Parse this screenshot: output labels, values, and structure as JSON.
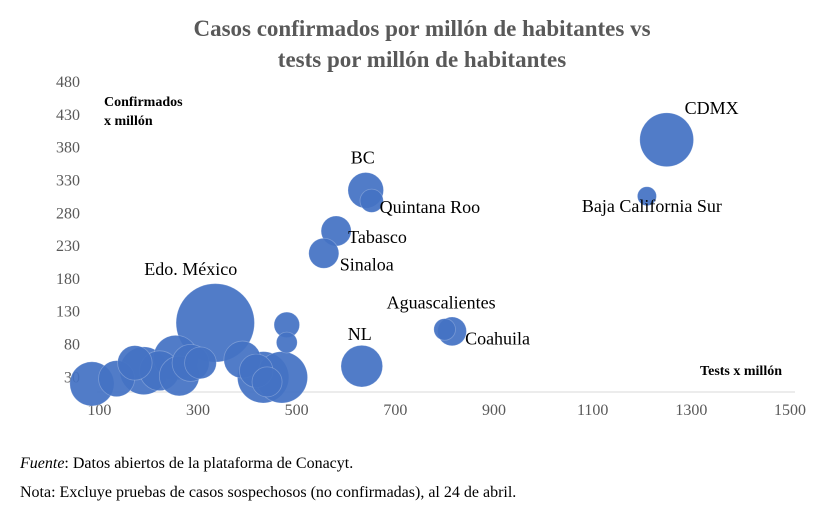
{
  "chart_data": {
    "type": "scatter",
    "subtype": "bubble",
    "title": [
      "Casos confirmados por millón de habitantes vs",
      "tests por millón de habitantes"
    ],
    "xlabel": "Tests x millón",
    "ylabel": [
      "Confirmados",
      "x millón"
    ],
    "xlim": [
      0,
      1500
    ],
    "ylim": [
      0,
      480
    ],
    "xticks": [
      "100",
      "300",
      "500",
      "700",
      "900",
      "1100",
      "1300",
      "1500"
    ],
    "yticks": [
      "30",
      "80",
      "130",
      "180",
      "230",
      "280",
      "330",
      "380",
      "430",
      "480"
    ],
    "grid": false,
    "legend": "none",
    "color": "#4472c4",
    "points": [
      {
        "label": "CDMX",
        "x": 1250,
        "y": 392,
        "size": 8
      },
      {
        "label": "Baja California Sur",
        "x": 1210,
        "y": 306,
        "size": 1
      },
      {
        "label": "BC",
        "x": 640,
        "y": 315,
        "size": 3.5
      },
      {
        "label": "Quintana Roo",
        "x": 652,
        "y": 299,
        "size": 1.5
      },
      {
        "label": "Tabasco",
        "x": 580,
        "y": 253,
        "size": 2.5
      },
      {
        "label": "Sinaloa",
        "x": 555,
        "y": 219,
        "size": 2.5
      },
      {
        "label": "Edo. México",
        "x": 335,
        "y": 113,
        "size": 17
      },
      {
        "label": "Aguascalientes",
        "x": 800,
        "y": 103,
        "size": 1.3
      },
      {
        "label": "Coahuila",
        "x": 815,
        "y": 100,
        "size": 2.3
      },
      {
        "label": "NL",
        "x": 632,
        "y": 47,
        "size": 4.8
      },
      {
        "label": "",
        "x": 480,
        "y": 110,
        "size": 1.8
      },
      {
        "label": "",
        "x": 480,
        "y": 83,
        "size": 1.2
      },
      {
        "label": "",
        "x": 85,
        "y": 20,
        "size": 5.4
      },
      {
        "label": "",
        "x": 135,
        "y": 28,
        "size": 3.6
      },
      {
        "label": "",
        "x": 172,
        "y": 52,
        "size": 3.3
      },
      {
        "label": "",
        "x": 190,
        "y": 40,
        "size": 6.3
      },
      {
        "label": "",
        "x": 222,
        "y": 40,
        "size": 4.4
      },
      {
        "label": "",
        "x": 255,
        "y": 60,
        "size": 5.5
      },
      {
        "label": "",
        "x": 262,
        "y": 32,
        "size": 4.4
      },
      {
        "label": "",
        "x": 285,
        "y": 52,
        "size": 3.8
      },
      {
        "label": "",
        "x": 305,
        "y": 52,
        "size": 2.8
      },
      {
        "label": "",
        "x": 390,
        "y": 57,
        "size": 3.8
      },
      {
        "label": "",
        "x": 418,
        "y": 40,
        "size": 3.1
      },
      {
        "label": "",
        "x": 432,
        "y": 30,
        "size": 7.3
      },
      {
        "label": "",
        "x": 440,
        "y": 23,
        "size": 2.5
      },
      {
        "label": "",
        "x": 470,
        "y": 30,
        "size": 7.3
      }
    ]
  },
  "footnotes": {
    "source_label": "Fuente",
    "source_text": ": Datos abiertos de la plataforma de Conacyt.",
    "note_text": "Nota: Excluye pruebas de casos sospechosos (no confirmadas), al 24 de abril."
  }
}
